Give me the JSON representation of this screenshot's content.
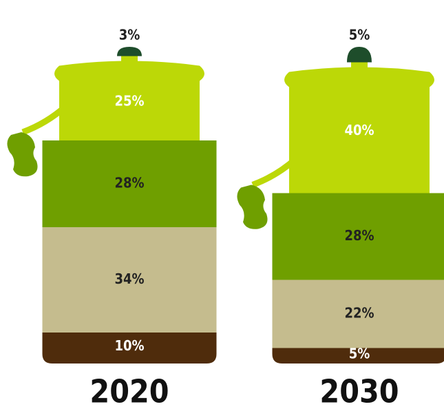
{
  "chart_data": {
    "type": "bottle-stack",
    "categories": [
      "2020",
      "2030"
    ],
    "series": [
      {
        "color": "#4f2c0c",
        "label_color": "#ffffff",
        "values": [
          10,
          5
        ],
        "value_labels": [
          "10%",
          "5%"
        ]
      },
      {
        "color": "#c5bc8e",
        "label_color": "#222222",
        "values": [
          34,
          22
        ],
        "value_labels": [
          "34%",
          "22%"
        ]
      },
      {
        "color": "#6f9f00",
        "label_color": "#222222",
        "values": [
          28,
          28
        ],
        "value_labels": [
          "28%",
          "28%"
        ]
      },
      {
        "color": "#bcd807",
        "label_color": "#ffffff",
        "values": [
          25,
          40
        ],
        "value_labels": [
          "25%",
          "40%"
        ]
      },
      {
        "color": "#1e4d2b",
        "label_color": "#222222",
        "values": [
          3,
          5
        ],
        "value_labels": [
          "3%",
          "5%"
        ]
      }
    ]
  }
}
